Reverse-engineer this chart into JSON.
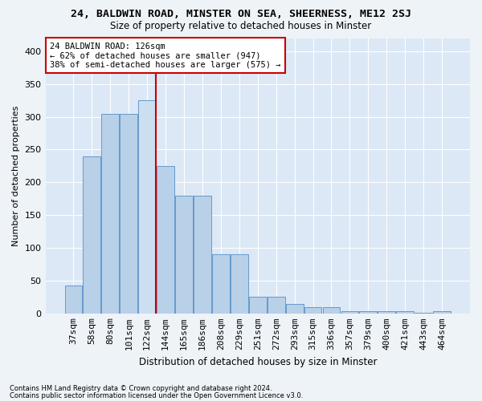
{
  "title": "24, BALDWIN ROAD, MINSTER ON SEA, SHEERNESS, ME12 2SJ",
  "subtitle": "Size of property relative to detached houses in Minster",
  "xlabel": "Distribution of detached houses by size in Minster",
  "ylabel": "Number of detached properties",
  "bar_labels": [
    "37sqm",
    "58sqm",
    "80sqm",
    "101sqm",
    "122sqm",
    "144sqm",
    "165sqm",
    "186sqm",
    "208sqm",
    "229sqm",
    "251sqm",
    "272sqm",
    "293sqm",
    "315sqm",
    "336sqm",
    "357sqm",
    "379sqm",
    "400sqm",
    "421sqm",
    "443sqm",
    "464sqm"
  ],
  "bar_values": [
    42,
    240,
    305,
    305,
    325,
    225,
    180,
    180,
    90,
    90,
    25,
    25,
    15,
    9,
    9,
    4,
    4,
    3,
    3,
    1,
    3
  ],
  "bar_color_normal": "#b8d0e8",
  "bar_color_highlight": "#ccdff0",
  "bar_edge_color": "#6699cc",
  "vline_color": "#cc0000",
  "annotation_text": "24 BALDWIN ROAD: 126sqm\n← 62% of detached houses are smaller (947)\n38% of semi-detached houses are larger (575) →",
  "annotation_box_facecolor": "#ffffff",
  "annotation_box_edgecolor": "#cc0000",
  "footnote1": "Contains HM Land Registry data © Crown copyright and database right 2024.",
  "footnote2": "Contains public sector information licensed under the Open Government Licence v3.0.",
  "plot_bg_color": "#dce8f5",
  "fig_bg_color": "#eef3f8",
  "ylim": [
    0,
    420
  ],
  "figsize": [
    6.0,
    5.0
  ],
  "dpi": 100
}
